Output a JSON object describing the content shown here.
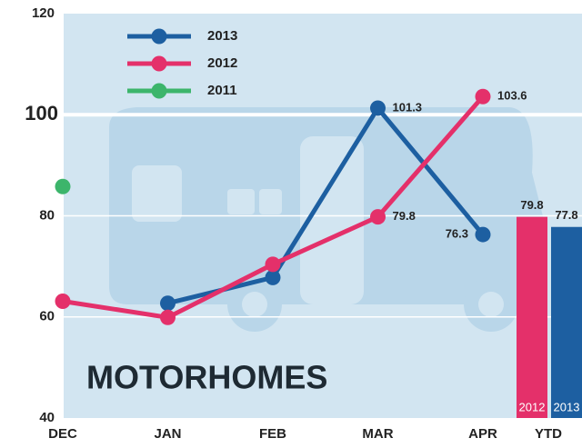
{
  "chart_data": {
    "type": "line",
    "title": "MOTORHOMES",
    "categories": [
      "DEC",
      "JAN",
      "FEB",
      "MAR",
      "APR"
    ],
    "series": [
      {
        "name": "2013",
        "color": "#1d5fa1",
        "values": [
          null,
          62.7,
          67.8,
          101.3,
          76.3
        ],
        "value_labels": [
          null,
          null,
          null,
          "101.3",
          "76.3"
        ]
      },
      {
        "name": "2012",
        "color": "#e4306a",
        "values": [
          63.1,
          59.9,
          70.4,
          79.8,
          103.6
        ],
        "value_labels": [
          null,
          null,
          null,
          "79.8",
          "103.6"
        ]
      },
      {
        "name": "2011",
        "color": "#3cb56b",
        "values": [
          85.8,
          null,
          null,
          null,
          null
        ],
        "value_labels": [
          null,
          null,
          null,
          null,
          null
        ]
      }
    ],
    "ytd": {
      "label": "YTD",
      "bars": [
        {
          "name": "2012",
          "value": 79.8,
          "color": "#e4306a"
        },
        {
          "name": "2013",
          "value": 77.8,
          "color": "#1d5fa1"
        }
      ]
    },
    "ylim": [
      40,
      120
    ],
    "yticks": [
      40,
      60,
      80,
      100,
      120
    ],
    "major_tick": 100,
    "grid": true,
    "legend": "upper left"
  }
}
